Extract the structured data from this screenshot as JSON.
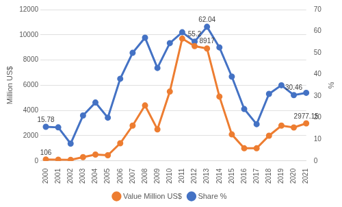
{
  "chart_data": {
    "type": "line",
    "categories": [
      "2000",
      "2001",
      "2002",
      "2003",
      "2004",
      "2005",
      "2006",
      "2007",
      "2008",
      "2009",
      "2010",
      "2011",
      "2012",
      "2013",
      "2014",
      "2015",
      "2016",
      "2017",
      "2018",
      "2019",
      "2020",
      "2021"
    ],
    "y_label": "Million US$",
    "y2_label": "%",
    "ylim": [
      0,
      12000
    ],
    "yticks": [
      0,
      2000,
      4000,
      6000,
      8000,
      10000,
      12000
    ],
    "y2lim": [
      0,
      70
    ],
    "y2ticks": [
      0,
      10,
      20,
      30,
      40,
      50,
      60,
      70
    ],
    "grid": true,
    "legend": "bottom",
    "series": [
      {
        "name": "Value Million US$",
        "color": "#ed7d31",
        "marker": "circle",
        "values": [
          106,
          100,
          80,
          300,
          500,
          450,
          1400,
          2800,
          4400,
          2500,
          5500,
          9700,
          9100,
          8917,
          5100,
          2100,
          1000,
          1000,
          2000,
          2800,
          2650,
          2977.15
        ],
        "value_labels": [
          "106",
          null,
          null,
          null,
          null,
          null,
          null,
          null,
          null,
          null,
          null,
          null,
          null,
          "8917",
          null,
          null,
          null,
          null,
          null,
          null,
          null,
          "2977.15"
        ]
      },
      {
        "name": "Share %",
        "color": "#4472c4",
        "marker": "circle",
        "axis": "y2",
        "values": [
          15.78,
          15.5,
          8,
          21,
          27,
          20,
          38,
          50,
          57,
          43,
          54.5,
          59.5,
          55.2,
          62.04,
          52.5,
          39,
          24,
          17,
          31,
          35,
          30.46,
          31.5
        ],
        "value_labels": [
          "15.78",
          null,
          null,
          null,
          null,
          null,
          null,
          null,
          null,
          null,
          null,
          null,
          "55.2",
          "62.04",
          null,
          null,
          null,
          null,
          null,
          null,
          "30.46",
          null
        ]
      }
    ]
  }
}
